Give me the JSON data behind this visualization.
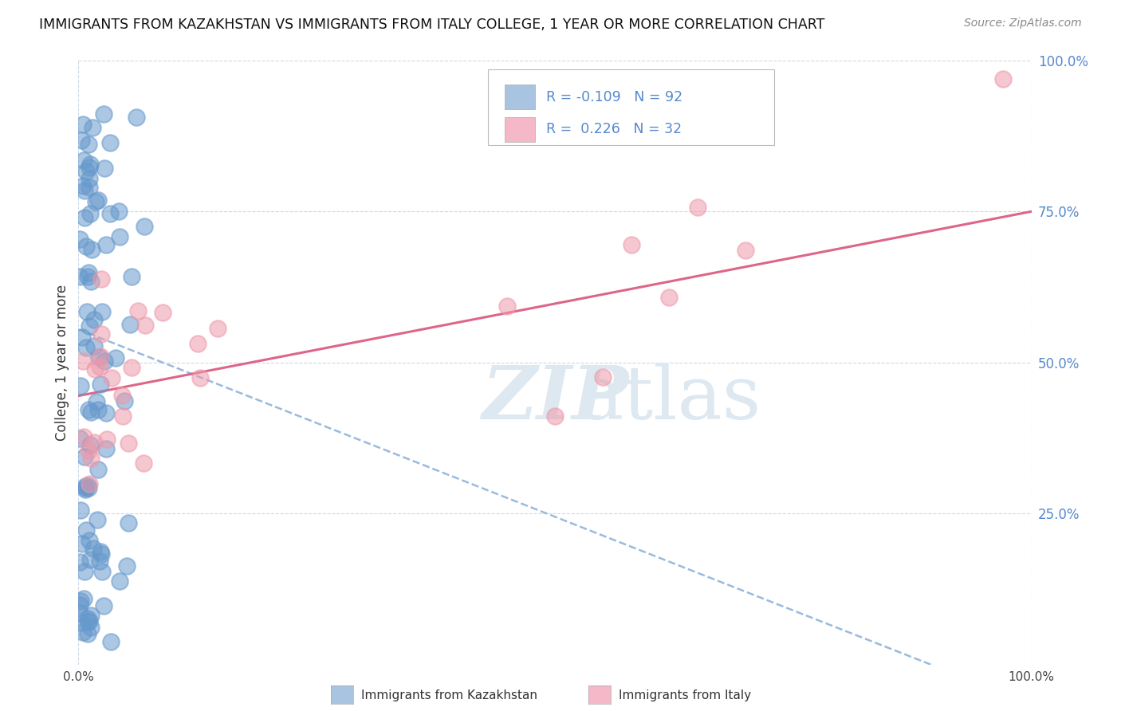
{
  "title": "IMMIGRANTS FROM KAZAKHSTAN VS IMMIGRANTS FROM ITALY COLLEGE, 1 YEAR OR MORE CORRELATION CHART",
  "source": "Source: ZipAtlas.com",
  "ylabel": "College, 1 year or more",
  "xlim": [
    0.0,
    1.0
  ],
  "ylim": [
    0.0,
    1.0
  ],
  "xtick_labels": [
    "0.0%",
    "100.0%"
  ],
  "ytick_labels": [
    "25.0%",
    "50.0%",
    "75.0%",
    "100.0%"
  ],
  "ytick_positions": [
    0.25,
    0.5,
    0.75,
    1.0
  ],
  "legend_label1": "Immigrants from Kazakhstan",
  "legend_label2": "Immigrants from Italy",
  "R1": "-0.109",
  "N1": "92",
  "R2": "0.226",
  "N2": "32",
  "color1": "#a8c4e0",
  "color2": "#f4b8c8",
  "dot_color1": "#6699cc",
  "dot_color2": "#ee99aa",
  "trendline1_color": "#99bbdd",
  "trendline2_color": "#dd6688",
  "watermark_color": "#dde8f0",
  "background_color": "#ffffff",
  "grid_color": "#ccd9e8",
  "right_label_color": "#5588cc",
  "kaz_intercept": 0.555,
  "kaz_slope": -0.62,
  "ita_intercept": 0.445,
  "ita_slope": 0.305
}
